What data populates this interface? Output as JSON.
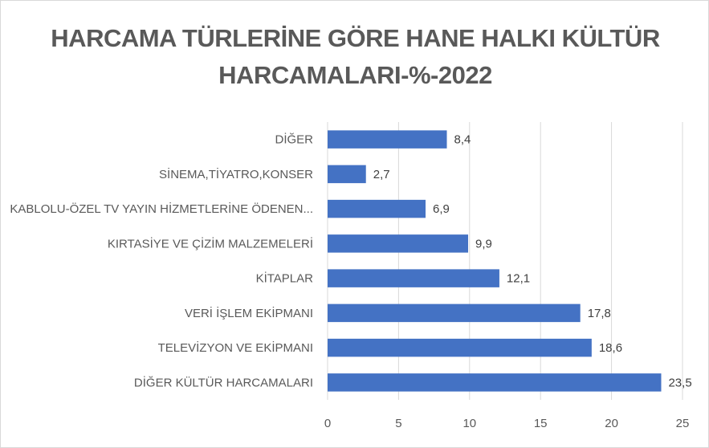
{
  "chart_data": {
    "type": "bar",
    "orientation": "horizontal",
    "title_lines": [
      "HARCAMA TÜRLERİNE GÖRE HANE HALKI KÜLTÜR",
      "HARCAMALARI-%-2022"
    ],
    "categories": [
      "DİĞER",
      "SİNEMA,TİYATRO,KONSER",
      "KABLOLU-ÖZEL TV YAYIN HİZMETLERİNE ÖDENEN...",
      "KIRTASİYE VE ÇİZİM MALZEMELERİ",
      "KİTAPLAR",
      "VERİ İŞLEM EKİPMANI",
      "TELEVİZYON VE EKİPMANI",
      "DİĞER KÜLTÜR HARCAMALARI"
    ],
    "values": [
      8.4,
      2.7,
      6.9,
      9.9,
      12.1,
      17.8,
      18.6,
      23.5
    ],
    "value_labels": [
      "8,4",
      "2,7",
      "6,9",
      "9,9",
      "12,1",
      "17,8",
      "18,6",
      "23,5"
    ],
    "xlim": [
      0,
      25
    ],
    "x_ticks": [
      0,
      5,
      10,
      15,
      20,
      25
    ],
    "grid": "vertical",
    "legend": "none",
    "bar_color": "#4472c4",
    "grid_color": "#d9d9d9"
  }
}
